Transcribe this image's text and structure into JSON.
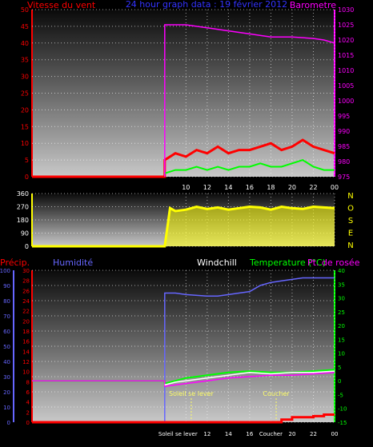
{
  "colors": {
    "wind": "#ff0000",
    "gust": "#00ff00",
    "baro": "#ff00ff",
    "title": "#3333ff",
    "dir": "#ffff00",
    "hum": "#6666ff",
    "temp": "#00ff00",
    "dew": "#ff00ff",
    "chill": "#ffffff",
    "precip": "#ff0000",
    "dirletters": "#ffff00",
    "sun": "#ffff66"
  },
  "x_hours": [
    "10",
    "12",
    "14",
    "16",
    "18",
    "20",
    "22",
    "00"
  ],
  "x_hours_bottom": [
    "Soleil se lever",
    "12",
    "14",
    "16",
    "Coucher",
    "20",
    "22",
    "00"
  ],
  "chart_data": [
    {
      "type": "line",
      "title": "24 hour graph data : 19 février 2012",
      "ylabel": "Vitesse du vent",
      "y2label": "Barometre",
      "ylim": [
        0,
        50
      ],
      "yticks": [
        0,
        5,
        10,
        15,
        20,
        25,
        30,
        35,
        40,
        45,
        50
      ],
      "y2lim": [
        975,
        1030
      ],
      "y2ticks": [
        975,
        980,
        985,
        990,
        995,
        1000,
        1005,
        1010,
        1015,
        1020,
        1025,
        1030
      ],
      "x_range_hours": [
        -4.5,
        24
      ],
      "data_start_hour": 8.0,
      "series": [
        {
          "key": "wind",
          "axis": "left",
          "x": [
            -4.5,
            8,
            8,
            9,
            10,
            11,
            12,
            13,
            14,
            15,
            16,
            17,
            18,
            19,
            20,
            21,
            22,
            23,
            24
          ],
          "y": [
            0,
            0,
            5,
            7,
            6,
            8,
            7,
            9,
            7,
            8,
            8,
            9,
            10,
            8,
            9,
            11,
            9,
            8,
            7
          ]
        },
        {
          "key": "gust",
          "axis": "left",
          "x": [
            8,
            9,
            10,
            11,
            12,
            13,
            14,
            15,
            16,
            17,
            18,
            19,
            20,
            21,
            22,
            23,
            24
          ],
          "y": [
            1,
            2,
            2,
            3,
            2,
            3,
            2,
            3,
            3,
            4,
            3,
            3,
            4,
            5,
            3,
            2,
            2
          ]
        },
        {
          "key": "baro",
          "axis": "right",
          "x": [
            8,
            8,
            9,
            10,
            12,
            14,
            16,
            18,
            20,
            22,
            23,
            24
          ],
          "y": [
            975,
            1025,
            1025,
            1025,
            1024,
            1023,
            1022,
            1021,
            1021,
            1020.5,
            1020,
            1019
          ]
        }
      ]
    },
    {
      "type": "scatter",
      "title": "",
      "ylim": [
        0,
        360
      ],
      "yticks": [
        0,
        90,
        180,
        270,
        360
      ],
      "letters": [
        "N",
        "O",
        "S",
        "E",
        "N"
      ],
      "x_range_hours": [
        -4.5,
        24
      ],
      "data_start_hour": 8.0,
      "series": [
        {
          "key": "dir",
          "x": [
            -4.5,
            8,
            8.5,
            9,
            10,
            11,
            12,
            13,
            14,
            15,
            16,
            17,
            18,
            19,
            20,
            21,
            22,
            23,
            24
          ],
          "y": [
            0,
            0,
            260,
            240,
            250,
            270,
            255,
            265,
            250,
            260,
            270,
            265,
            250,
            270,
            260,
            255,
            270,
            265,
            260
          ]
        }
      ]
    },
    {
      "type": "line",
      "labels": [
        "Précip.",
        "Humidité",
        "Windchill",
        "Temperature (°C)",
        "Pt. de rosée"
      ],
      "yhum_ticks": [
        0,
        10,
        20,
        30,
        40,
        50,
        60,
        70,
        80,
        90,
        100
      ],
      "yprecip_ticks": [
        0,
        2,
        4,
        6,
        8,
        10,
        12,
        14,
        16,
        18,
        20,
        22,
        24,
        26,
        28,
        30
      ],
      "ytemp_ticks": [
        -15,
        -10,
        -5,
        0,
        5,
        10,
        15,
        20,
        25,
        30,
        35,
        40
      ],
      "ytemp_lim": [
        -15,
        40
      ],
      "x_range_hours": [
        -4.5,
        24
      ],
      "sunrise": "Soleil se lever",
      "sunset": "Coucher",
      "sunrise_hour": 10.5,
      "sunset_hour": 18.5,
      "series": [
        {
          "key": "hum",
          "axis": "hum",
          "x": [
            8,
            8,
            9,
            10,
            12,
            13,
            14,
            15,
            16,
            17,
            18,
            19,
            20,
            21,
            22,
            23,
            24
          ],
          "y": [
            0,
            85,
            85,
            84,
            83,
            83,
            84,
            85,
            86,
            90,
            92,
            93,
            94,
            95,
            95,
            95,
            95
          ]
        },
        {
          "key": "temp",
          "axis": "temp",
          "x": [
            -4.5,
            8,
            8,
            9,
            10,
            12,
            14,
            16,
            18,
            20,
            22,
            24
          ],
          "y": [
            0,
            0,
            -1,
            0,
            1,
            2,
            3,
            3.5,
            3,
            3,
            3.5,
            4
          ]
        },
        {
          "key": "dew",
          "axis": "temp",
          "x": [
            -4.5,
            8,
            8,
            9,
            10,
            12,
            14,
            16,
            18,
            20,
            22,
            24
          ],
          "y": [
            0,
            0,
            -2,
            -1.5,
            -1,
            0,
            1,
            1.5,
            2,
            2,
            2.5,
            3
          ]
        },
        {
          "key": "chill",
          "axis": "temp",
          "x": [
            8,
            9,
            10,
            12,
            14,
            16,
            18,
            20,
            22,
            24
          ],
          "y": [
            -1.5,
            -0.5,
            0,
            1,
            2,
            3,
            2.5,
            3,
            3,
            3.5
          ]
        },
        {
          "key": "precip",
          "axis": "precip",
          "x": [
            -4.5,
            19,
            19,
            20,
            20,
            22,
            22,
            23,
            23,
            24
          ],
          "y": [
            0,
            0,
            0.5,
            0.5,
            1.0,
            1.0,
            1.2,
            1.2,
            1.5,
            1.5
          ]
        }
      ]
    }
  ]
}
